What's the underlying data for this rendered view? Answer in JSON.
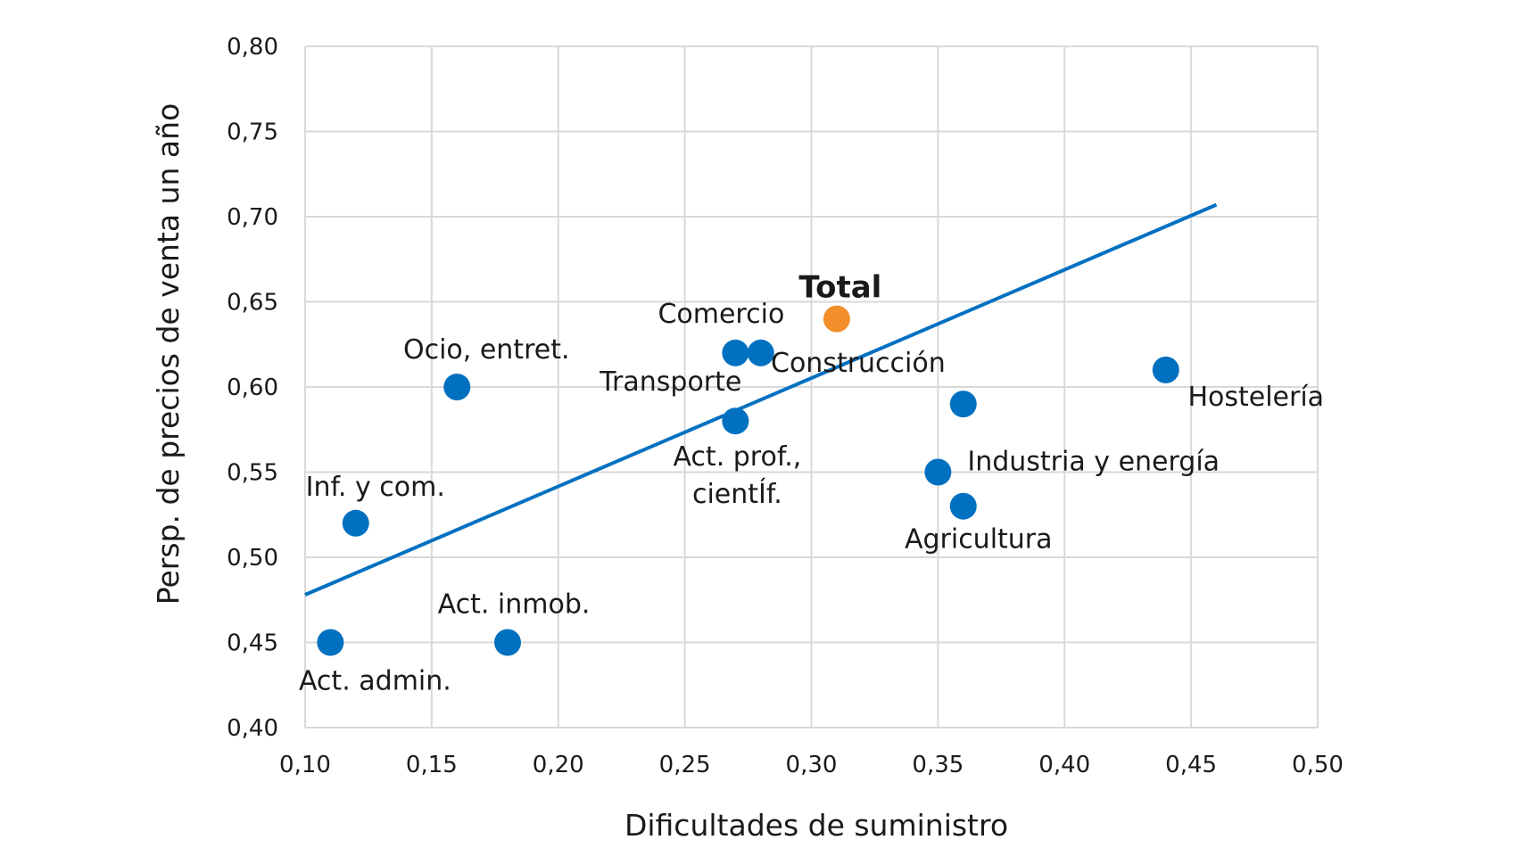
{
  "chart_data": {
    "type": "scatter",
    "title": "",
    "xlabel": "Dificultades de suministro",
    "ylabel": "Persp. de precios de venta un año",
    "xlim": [
      0.1,
      0.5
    ],
    "ylim": [
      0.4,
      0.8
    ],
    "x_ticks": [
      "0,10",
      "0,15",
      "0,20",
      "0,25",
      "0,30",
      "0,35",
      "0,40",
      "0,45",
      "0,50"
    ],
    "y_ticks": [
      "0,40",
      "0,45",
      "0,50",
      "0,55",
      "0,60",
      "0,65",
      "0,70",
      "0,75",
      "0,80"
    ],
    "grid": true,
    "points": [
      {
        "label": "Act. admin.",
        "x": 0.11,
        "y": 0.45,
        "color": "#0070c0"
      },
      {
        "label": "Inf. y com.",
        "x": 0.12,
        "y": 0.52,
        "color": "#0070c0"
      },
      {
        "label": "Ocio, entret.",
        "x": 0.16,
        "y": 0.6,
        "color": "#0070c0"
      },
      {
        "label": "Act. inmob.",
        "x": 0.18,
        "y": 0.45,
        "color": "#0070c0"
      },
      {
        "label": "Comercio",
        "x": 0.27,
        "y": 0.62,
        "color": "#0070c0"
      },
      {
        "label": "Transporte",
        "x": 0.28,
        "y": 0.62,
        "color": "#0070c0"
      },
      {
        "label": "Act. prof., cientÍf.",
        "label_lines": [
          "Act. prof.,",
          "cientÍf."
        ],
        "x": 0.27,
        "y": 0.58,
        "color": "#0070c0"
      },
      {
        "label": "Total",
        "x": 0.31,
        "y": 0.64,
        "color": "#f28e2b",
        "bold": true
      },
      {
        "label": "Industria y energía",
        "x": 0.35,
        "y": 0.55,
        "color": "#0070c0"
      },
      {
        "label": "Construcción",
        "x": 0.36,
        "y": 0.59,
        "color": "#0070c0"
      },
      {
        "label": "Agricultura",
        "x": 0.36,
        "y": 0.53,
        "color": "#0070c0"
      },
      {
        "label": "Hostelería",
        "x": 0.44,
        "y": 0.61,
        "color": "#0070c0"
      }
    ],
    "trendline": {
      "x": [
        0.1,
        0.46
      ],
      "y": [
        0.478,
        0.707
      ],
      "color": "#0070c0"
    }
  }
}
